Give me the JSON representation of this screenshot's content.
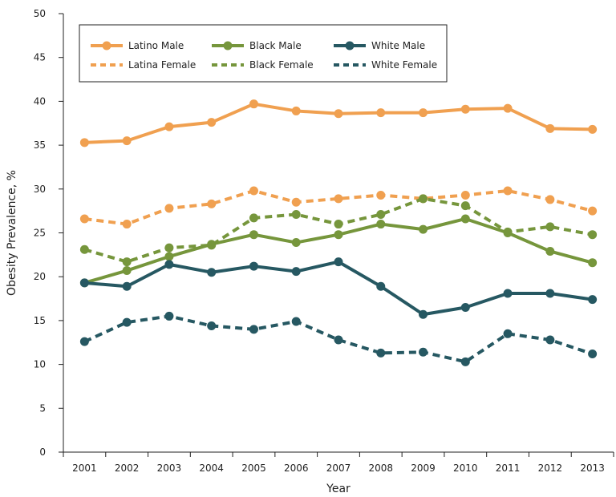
{
  "chart_data": {
    "type": "line",
    "title": "",
    "xlabel": "Year",
    "ylabel": "Obesity Prevalence, %",
    "ylim": [
      0,
      50
    ],
    "yticks": [
      0,
      5,
      10,
      15,
      20,
      25,
      30,
      35,
      40,
      45,
      50
    ],
    "categories": [
      "2001",
      "2002",
      "2003",
      "2004",
      "2005",
      "2006",
      "2007",
      "2008",
      "2009",
      "2010",
      "2011",
      "2012",
      "2013"
    ],
    "grid": false,
    "legend_placement": "top-left",
    "series": [
      {
        "name": "Latino Male",
        "color": "#f0a050",
        "dashed": false,
        "values": [
          35.3,
          35.5,
          37.1,
          37.6,
          39.7,
          38.9,
          38.6,
          38.7,
          38.7,
          39.1,
          39.2,
          36.9,
          36.8
        ]
      },
      {
        "name": "Black Male",
        "color": "#76963c",
        "dashed": false,
        "values": [
          19.3,
          20.7,
          22.3,
          23.7,
          24.8,
          23.9,
          24.8,
          26.0,
          25.4,
          26.6,
          25.0,
          22.9,
          21.6
        ]
      },
      {
        "name": "White Male",
        "color": "#265862",
        "dashed": false,
        "values": [
          19.3,
          18.9,
          21.4,
          20.5,
          21.2,
          20.6,
          21.7,
          18.9,
          15.7,
          16.5,
          18.1,
          18.1,
          17.4
        ]
      },
      {
        "name": "Latina Female",
        "color": "#f0a050",
        "dashed": true,
        "values": [
          26.6,
          26.0,
          27.8,
          28.3,
          29.8,
          28.5,
          28.9,
          29.3,
          28.9,
          29.3,
          29.8,
          28.8,
          27.5
        ]
      },
      {
        "name": "Black Female",
        "color": "#76963c",
        "dashed": true,
        "values": [
          23.1,
          21.7,
          23.3,
          23.6,
          26.7,
          27.1,
          26.0,
          27.1,
          28.9,
          28.1,
          25.1,
          25.7,
          24.8
        ]
      },
      {
        "name": "White Female",
        "color": "#265862",
        "dashed": true,
        "values": [
          12.6,
          14.8,
          15.5,
          14.4,
          14.0,
          14.9,
          12.8,
          11.3,
          11.4,
          10.3,
          13.5,
          12.8,
          11.2
        ]
      }
    ]
  }
}
